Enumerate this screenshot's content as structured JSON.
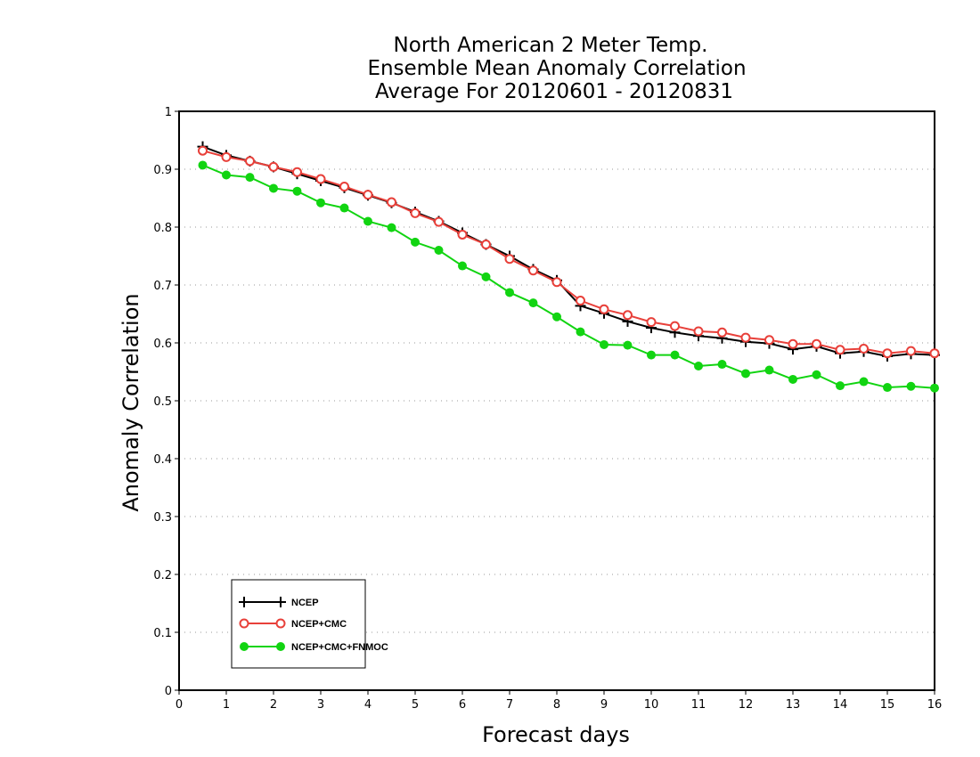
{
  "chart_data": {
    "type": "line",
    "title": [
      "North American 2 Meter Temp.",
      "Ensemble Mean Anomaly Correlation",
      "Average For 20120601 - 20120831"
    ],
    "xlabel": "Forecast days",
    "ylabel": "Anomaly Correlation",
    "xlim": [
      0,
      16
    ],
    "ylim": [
      0,
      1
    ],
    "xticks": [
      "0",
      "1",
      "2",
      "3",
      "4",
      "5",
      "6",
      "7",
      "8",
      "9",
      "10",
      "11",
      "12",
      "13",
      "14",
      "15",
      "16"
    ],
    "yticks": [
      "0",
      "0.1",
      "0.2",
      "0.3",
      "0.4",
      "0.5",
      "0.6",
      "0.7",
      "0.8",
      "0.9",
      "1"
    ],
    "grid": "horizontal dotted",
    "legend_position": "bottom-left",
    "x": [
      0.5,
      1,
      1.5,
      2,
      2.5,
      3,
      3.5,
      4,
      4.5,
      5,
      5.5,
      6,
      6.5,
      7,
      7.5,
      8,
      8.5,
      9,
      9.5,
      10,
      10.5,
      11,
      11.5,
      12,
      12.5,
      13,
      13.5,
      14,
      14.5,
      15,
      15.5,
      16
    ],
    "series": [
      {
        "name": "NCEP",
        "color": "#000000",
        "marker": "plus",
        "values": [
          0.939,
          0.924,
          0.914,
          0.904,
          0.892,
          0.88,
          0.868,
          0.855,
          0.842,
          0.826,
          0.81,
          0.79,
          0.77,
          0.75,
          0.727,
          0.708,
          0.664,
          0.651,
          0.637,
          0.626,
          0.618,
          0.612,
          0.608,
          0.602,
          0.599,
          0.589,
          0.594,
          0.582,
          0.585,
          0.577,
          0.581,
          0.579
        ]
      },
      {
        "name": "NCEP+CMC",
        "color": "#e8403a",
        "marker": "open-circle",
        "values": [
          0.932,
          0.921,
          0.914,
          0.904,
          0.895,
          0.883,
          0.87,
          0.856,
          0.843,
          0.824,
          0.809,
          0.787,
          0.77,
          0.745,
          0.725,
          0.705,
          0.673,
          0.658,
          0.648,
          0.636,
          0.629,
          0.62,
          0.618,
          0.609,
          0.605,
          0.598,
          0.598,
          0.588,
          0.59,
          0.582,
          0.586,
          0.582
        ]
      },
      {
        "name": "NCEP+CMC+FNMOC",
        "color": "#11d411",
        "marker": "filled-circle",
        "values": [
          0.907,
          0.89,
          0.886,
          0.867,
          0.862,
          0.842,
          0.833,
          0.81,
          0.799,
          0.774,
          0.76,
          0.733,
          0.714,
          0.687,
          0.669,
          0.645,
          0.619,
          0.597,
          0.596,
          0.579,
          0.579,
          0.56,
          0.563,
          0.547,
          0.553,
          0.537,
          0.545,
          0.526,
          0.533,
          0.523,
          0.525,
          0.522
        ]
      }
    ]
  }
}
